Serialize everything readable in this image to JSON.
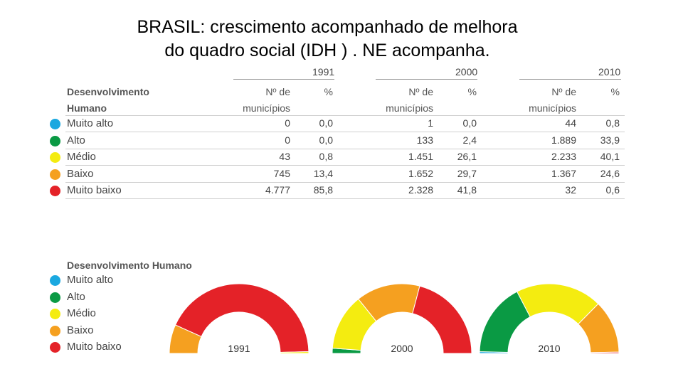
{
  "title_lines": [
    "BRASIL:  crescimento acompanhado de melhora",
    "do quadro social (IDH ) . NE acompanha."
  ],
  "colors": {
    "muito_alto": "#1aa8e0",
    "alto": "#0a9a44",
    "medio": "#f4ec10",
    "baixo": "#f5a020",
    "muito_baixo": "#e42228"
  },
  "table": {
    "header_left_1": "Desenvolvimento",
    "header_left_2": "Humano",
    "years": [
      "1991",
      "2000",
      "2010"
    ],
    "col_count_1": "Nº de",
    "col_count_2": "municípios",
    "col_pct": "%",
    "rows": [
      {
        "label": "Muito alto",
        "color": "#1aa8e0",
        "v1991": "0",
        "p1991": "0,0",
        "v2000": "1",
        "p2000": "0,0",
        "v2010": "44",
        "p2010": "0,8"
      },
      {
        "label": "Alto",
        "color": "#0a9a44",
        "v1991": "0",
        "p1991": "0,0",
        "v2000": "133",
        "p2000": "2,4",
        "v2010": "1.889",
        "p2010": "33,9"
      },
      {
        "label": "Médio",
        "color": "#f4ec10",
        "v1991": "43",
        "p1991": "0,8",
        "v2000": "1.451",
        "p2000": "26,1",
        "v2010": "2.233",
        "p2010": "40,1"
      },
      {
        "label": "Baixo",
        "color": "#f5a020",
        "v1991": "745",
        "p1991": "13,4",
        "v2000": "1.652",
        "p2000": "29,7",
        "v2010": "1.367",
        "p2010": "24,6"
      },
      {
        "label": "Muito baixo",
        "color": "#e42228",
        "v1991": "4.777",
        "p1991": "85,8",
        "v2000": "2.328",
        "p2000": "41,8",
        "v2010": "32",
        "p2010": "0,6"
      }
    ]
  },
  "legend": {
    "title": "Desenvolvimento Humano",
    "items": [
      {
        "label": "Muito alto",
        "color": "#1aa8e0"
      },
      {
        "label": "Alto",
        "color": "#0a9a44"
      },
      {
        "label": "Médio",
        "color": "#f4ec10"
      },
      {
        "label": "Baixo",
        "color": "#f5a020"
      },
      {
        "label": "Muito baixo",
        "color": "#e42228"
      }
    ]
  },
  "chart_data": {
    "type": "pie",
    "subtype": "semicircle-donut",
    "categories": [
      "Muito alto",
      "Alto",
      "Médio",
      "Baixo",
      "Muito baixo"
    ],
    "series": [
      {
        "name": "1991",
        "values": [
          0.0,
          0.0,
          0.8,
          13.4,
          85.8
        ]
      },
      {
        "name": "2000",
        "values": [
          0.0,
          2.4,
          26.1,
          29.7,
          41.8
        ]
      },
      {
        "name": "2010",
        "values": [
          0.8,
          33.9,
          40.1,
          24.6,
          0.6
        ]
      }
    ],
    "legend_position": "left"
  }
}
